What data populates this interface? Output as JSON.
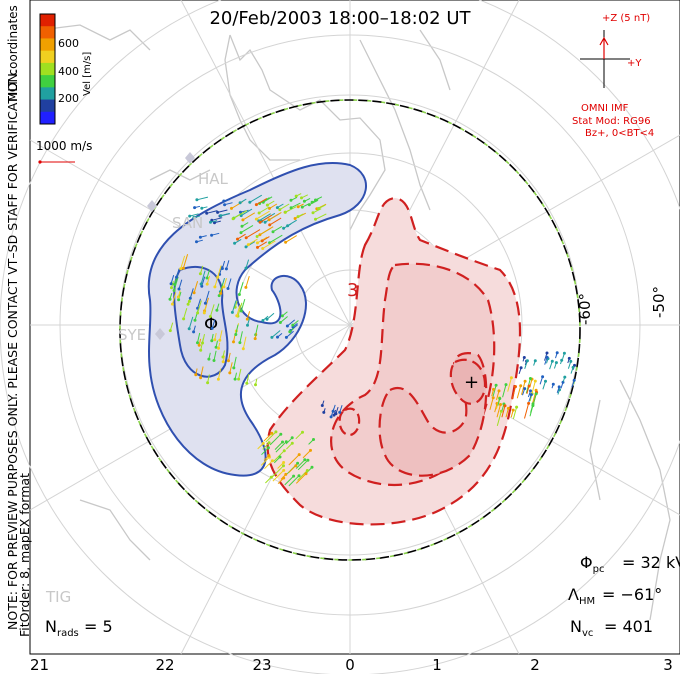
{
  "title": "20/Feb/2003 18:00–18:02 UT",
  "side_note": "NOTE: FOR PREVIEW PURPOSES ONLY. PLEASE CONTACT VT–SD STAFF FOR VERIFICATION.",
  "side_note2": "FitOrder: 8, mapEX format",
  "colorbar": {
    "label": "Vel [m/s]",
    "ticks": [
      "600",
      "400",
      "200"
    ],
    "coords_label": "MLT coordinates",
    "colors": [
      "#2020ff",
      "#2040a0",
      "#20a0a0",
      "#40d040",
      "#a0e020",
      "#f0d020",
      "#f0a000",
      "#f06000",
      "#e02000"
    ]
  },
  "scale_vector": "1000 m/s",
  "imf": {
    "z_label": "+Z (5 nT)",
    "y_label": "+Y",
    "source": "OMNI IMF",
    "model": "Stat Mod: RG96",
    "condition": "Bz+, 0<BT<4",
    "color": "#e00000"
  },
  "contour_label": "3",
  "lat_labels": [
    "-60°",
    "-50°"
  ],
  "stations": [
    "HAL",
    "SAN",
    "SYE",
    "TIG"
  ],
  "stats": {
    "phi_symbol": "Φ",
    "phi_sub": "pc",
    "phi_value": "= 32 kV",
    "lambda_symbol": "Λ",
    "lambda_sub": "HM",
    "lambda_value": "= −61°",
    "nvc_symbol": "N",
    "nvc_sub": "vc",
    "nvc_value": "= 401",
    "nrads_symbol": "N",
    "nrads_sub": "rads",
    "nrads_value": "= 5"
  },
  "mlt_ticks": [
    "21",
    "22",
    "23",
    "0",
    "1",
    "2",
    "3"
  ],
  "colors": {
    "negative_cell": "#3050b0",
    "negative_fill": "#dfe1f0",
    "positive_cell": "#d02020",
    "positive_fill": "#f6d3d3",
    "boundary_green": "#8ad24a"
  }
}
